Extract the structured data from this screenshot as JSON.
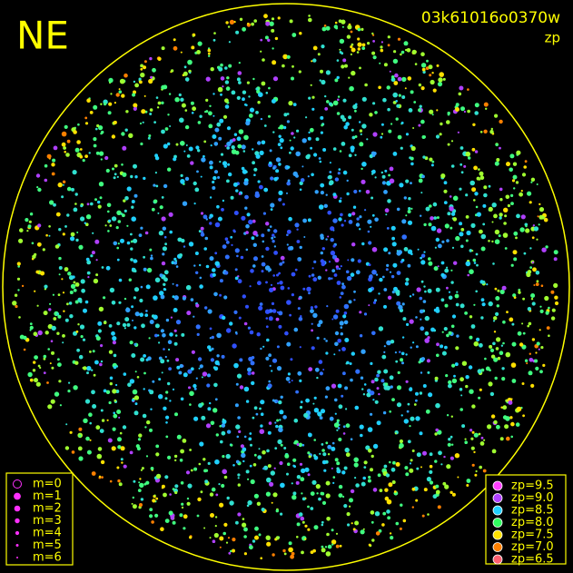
{
  "header": {
    "direction": "NE",
    "frame_id": "03k61016o0370w",
    "mode": "zp"
  },
  "legend_magnitude": {
    "color": "#ff30ff",
    "labels": [
      "m=0",
      "m=1",
      "m=2",
      "m=3",
      "m=4",
      "m=5",
      "m=6"
    ]
  },
  "legend_zp": {
    "labels": [
      "zp=9.5",
      "zp=9.0",
      "zp=8.5",
      "zp=8.0",
      "zp=7.5",
      "zp=7.0",
      "zp=6.5"
    ],
    "colors": [
      "#ff40ff",
      "#b040ff",
      "#20d0ff",
      "#30ff60",
      "#ffe000",
      "#ff8000",
      "#ff6070"
    ]
  },
  "frame_color": "#ffff00"
}
